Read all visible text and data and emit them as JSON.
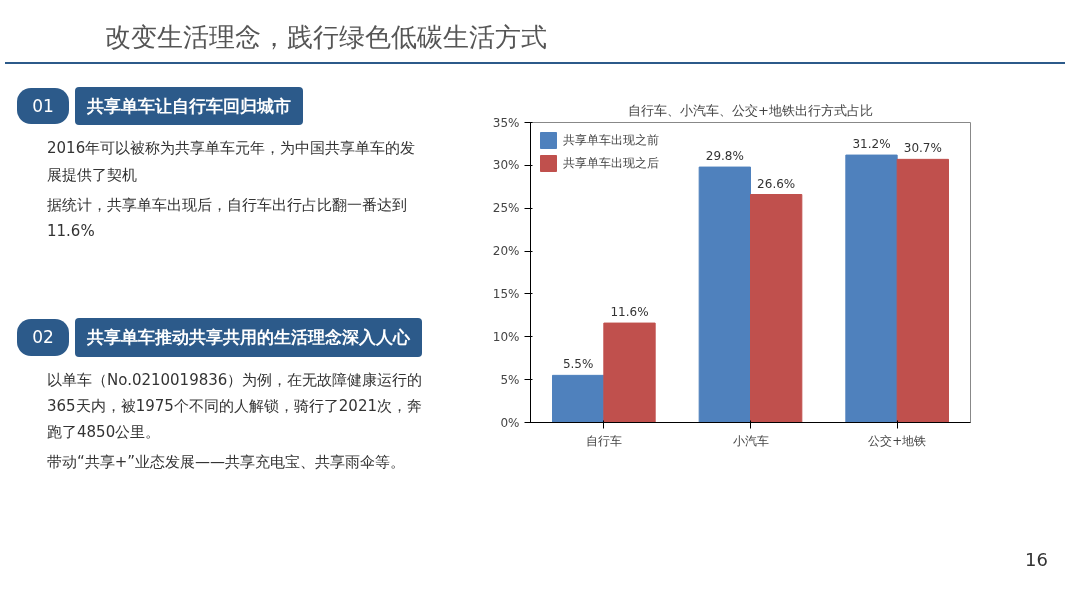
{
  "chart_data": {
    "type": "bar",
    "title": "自行车、小汽车、公交+地铁出行方式占比",
    "subtitle": "改变生活理念，践行绿色低碳生活方式",
    "categories": [
      "自行车",
      "小汽车",
      "公交+地铁"
    ],
    "series": [
      {
        "name": "共享单车出现之前",
        "color": "#4f81bd",
        "values": [
          5.5,
          29.8,
          31.2
        ],
        "value_labels": [
          "5.5%",
          "29.8%",
          "31.2%"
        ]
      },
      {
        "name": "共享单车出现之后",
        "color": "#c0504d",
        "values": [
          11.6,
          26.6,
          30.7
        ],
        "value_labels": [
          "11.6%",
          "26.6%",
          "30.7%"
        ]
      }
    ],
    "ylim": [
      0,
      35
    ],
    "yticks": [
      {
        "value": 0,
        "label": "0%"
      },
      {
        "value": 5,
        "label": "5%"
      },
      {
        "value": 10,
        "label": "10%"
      },
      {
        "value": 15,
        "label": "15%"
      },
      {
        "value": 20,
        "label": "20%"
      },
      {
        "value": 25,
        "label": "25%"
      },
      {
        "value": 30,
        "label": "30%"
      },
      {
        "value": 35,
        "label": "35%"
      }
    ],
    "grid": false,
    "legend": "top left",
    "annotations": [
      "01",
      "共享单车让自行车回归城市",
      "2016年可以被称为共享单车元年，为中国共享单车的发展提供了契机",
      "据统计，共享单车出现后，自行车出行占比翻一番达到11.6%",
      "02",
      "共享单车推动共享共用的生活理念深入人心",
      "以单车（No.0210019836）为例，在无故障健康运行的365天内，被1975个不同的人解锁，骑行了2021次，奔跑了4850公里。",
      "带动“共享+”业态发展——共享充电宝、共享雨伞等。",
      "16"
    ]
  }
}
